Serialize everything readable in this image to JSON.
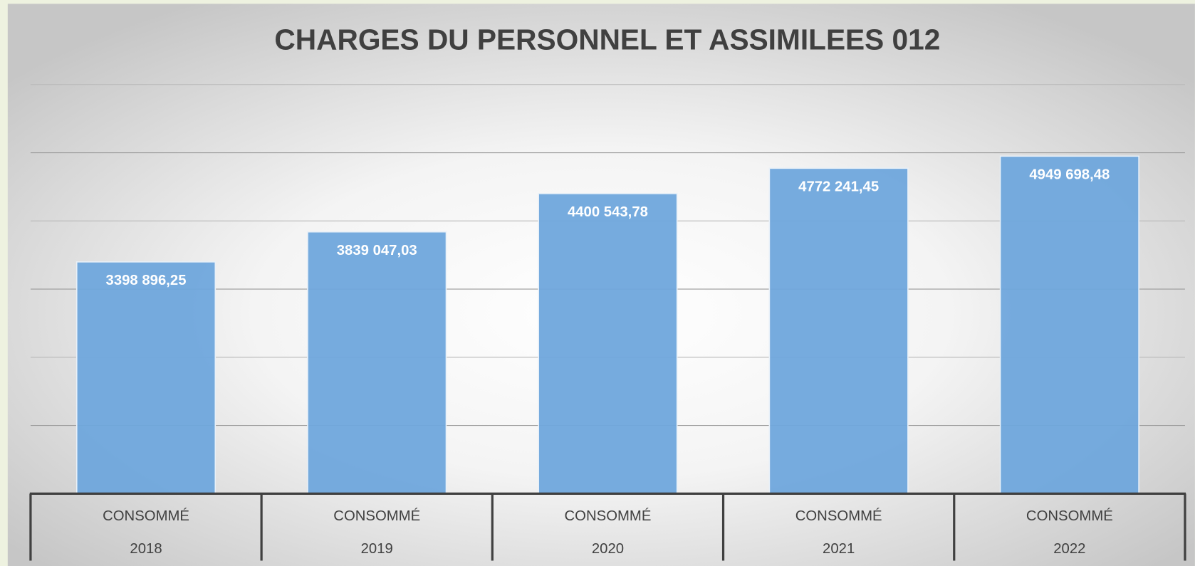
{
  "chart_data": {
    "type": "bar",
    "title": "CHARGES DU PERSONNEL ET ASSIMILEES 012",
    "categories": [
      [
        "CONSOMMÉ",
        "2018"
      ],
      [
        "CONSOMMÉ",
        "2019"
      ],
      [
        "CONSOMMÉ",
        "2020"
      ],
      [
        "CONSOMMÉ",
        "2021"
      ],
      [
        "CONSOMMÉ",
        "2022"
      ]
    ],
    "values": [
      3398896.25,
      3839047.03,
      4400543.78,
      4772241.45,
      4949698.48
    ],
    "value_labels": [
      "3398 896,25",
      "3839 047,03",
      "4400 543,78",
      "4772 241,45",
      "4949 698,48"
    ],
    "color": "#6fa6dc",
    "ylim": [
      0,
      6000000
    ],
    "yticks": [
      0,
      1000000,
      2000000,
      3000000,
      4000000,
      5000000,
      6000000
    ],
    "grid": true
  }
}
